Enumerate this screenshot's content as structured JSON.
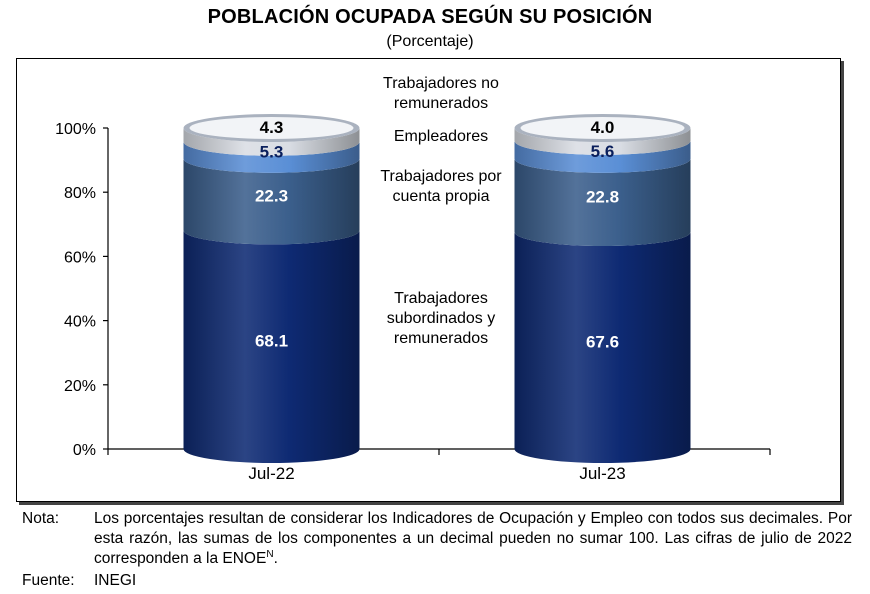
{
  "chart_data": {
    "type": "bar",
    "stacked": true,
    "title": "POBLACIÓN OCUPADA SEGÚN SU POSICIÓN",
    "subtitle": "(Porcentaje)",
    "categories": [
      "Jul-22",
      "Jul-23"
    ],
    "ylim": [
      0,
      100
    ],
    "yticks": [
      "0%",
      "20%",
      "40%",
      "60%",
      "80%",
      "100%"
    ],
    "series": [
      {
        "name": "Trabajadores subordinados y remunerados",
        "values": [
          68.1,
          67.6
        ],
        "labels": [
          "68.1",
          "67.6"
        ],
        "color": "#0e2a73"
      },
      {
        "name": "Trabajadores por cuenta propia",
        "values": [
          22.3,
          22.8
        ],
        "labels": [
          "22.3",
          "22.8"
        ],
        "color": "#3b5f8c"
      },
      {
        "name": "Empleadores",
        "values": [
          5.3,
          5.6
        ],
        "labels": [
          "5.3",
          "5.6"
        ],
        "color": "#5a8fd6"
      },
      {
        "name": "Trabajadores no remunerados",
        "values": [
          4.3,
          4.0
        ],
        "labels": [
          "4.3",
          "4.0"
        ],
        "color": "#d9dde4"
      }
    ],
    "middle_labels": [
      [
        "Trabajadores",
        "subordinados  y",
        "remunerados"
      ],
      [
        "Trabajadores por",
        "cuenta propia"
      ],
      [
        "Empleadores"
      ],
      [
        "Trabajadores no",
        "remunerados"
      ]
    ]
  },
  "notes": {
    "nota_label": "Nota:",
    "nota_text": "Los porcentajes resultan de considerar los Indicadores de Ocupación y Empleo con todos sus decimales. Por esta razón, las sumas de los componentes a un decimal pueden no sumar 100. Las cifras de julio de 2022 corresponden a la ENOE",
    "nota_sup": "N",
    "nota_end": ".",
    "fuente_label": "Fuente:",
    "fuente_text": "INEGI"
  }
}
